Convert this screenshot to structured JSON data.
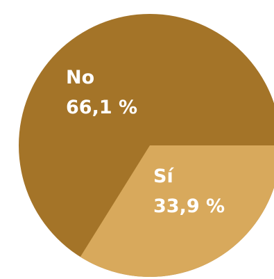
{
  "chart_data": {
    "type": "pie",
    "slices": [
      {
        "label": "No",
        "value_label": "66,1 %",
        "value": 66.1,
        "color": "#A47428"
      },
      {
        "label": "Sí",
        "value_label": "33,9 %",
        "value": 33.9,
        "color": "#D8A95C"
      }
    ]
  }
}
